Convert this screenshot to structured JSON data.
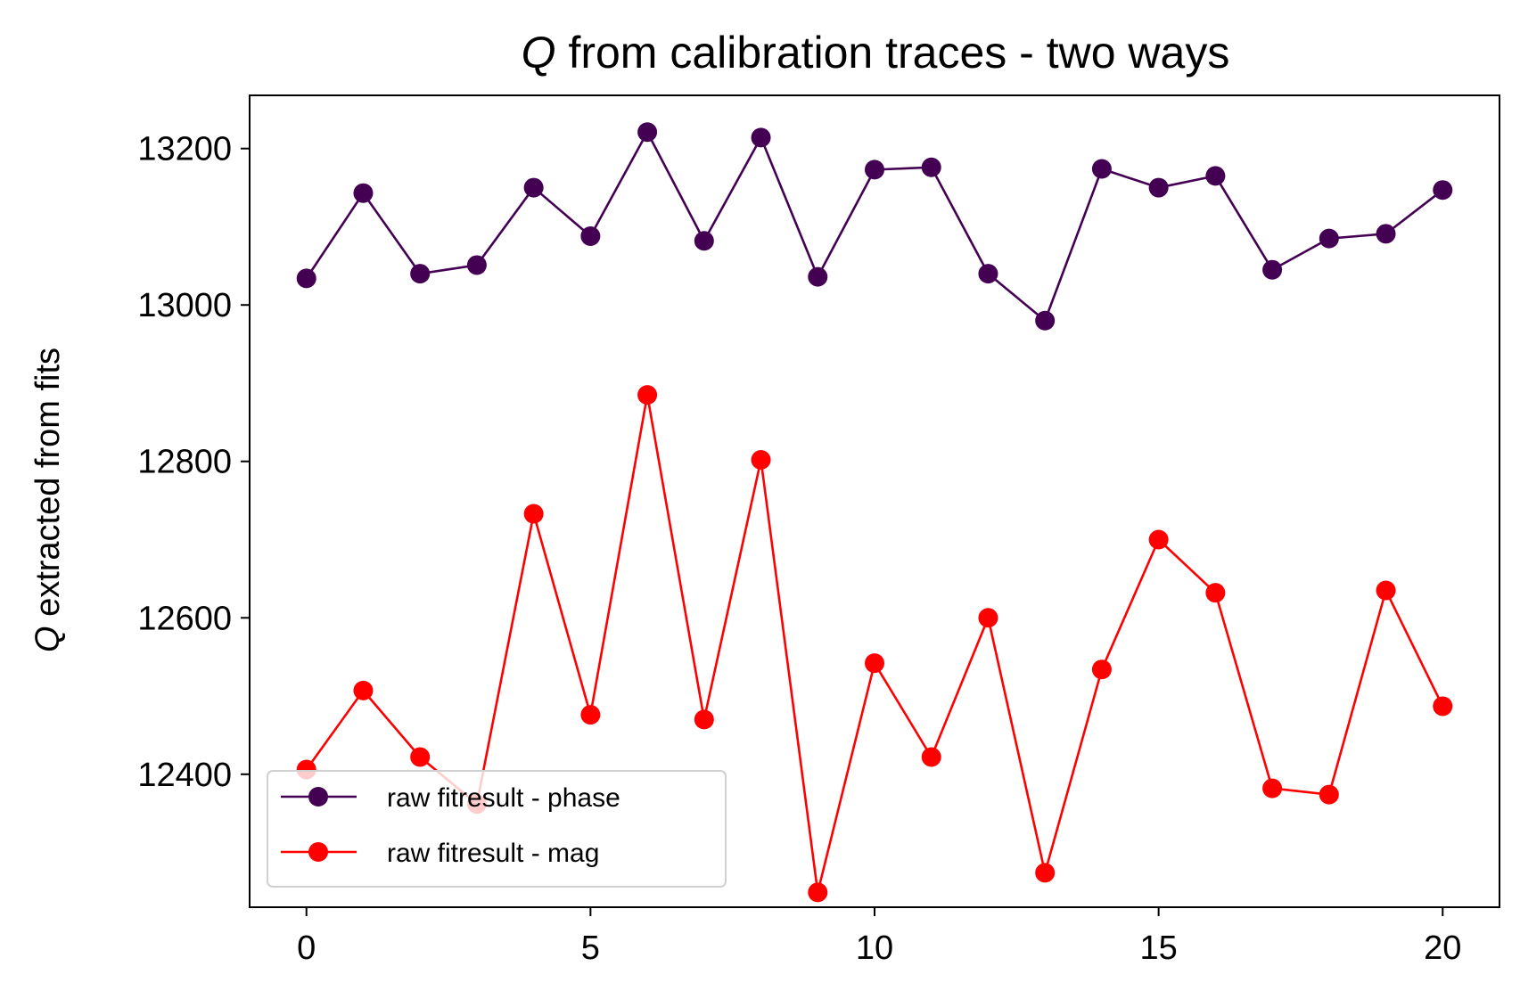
{
  "chart_data": {
    "type": "line",
    "title": "Q from calibration traces - two ways",
    "title_italic": "Q",
    "title_rest": " from calibration traces - two ways",
    "xlabel": "",
    "ylabel": "Q extracted from fits",
    "ylabel_italic": "Q",
    "ylabel_rest": " extracted from fits",
    "xlim": [
      -1,
      21
    ],
    "ylim": [
      12230,
      13268
    ],
    "xticks": [
      0,
      5,
      10,
      15,
      20
    ],
    "xtick_labels": [
      "0",
      "5",
      "10",
      "15",
      "20"
    ],
    "yticks": [
      12400,
      12600,
      12800,
      13000,
      13200
    ],
    "ytick_labels": [
      "12400",
      "12600",
      "12800",
      "13000",
      "13200"
    ],
    "grid": false,
    "legend_position": "lower-left",
    "x": [
      0,
      1,
      2,
      3,
      4,
      5,
      6,
      7,
      8,
      9,
      10,
      11,
      12,
      13,
      14,
      15,
      16,
      17,
      18,
      19,
      20
    ],
    "series": [
      {
        "name": "raw fitresult - phase",
        "color": "#440154",
        "marker": "circle",
        "values": [
          13034,
          13143,
          13040,
          13051,
          13150,
          13088,
          13221,
          13082,
          13214,
          13036,
          13173,
          13176,
          13040,
          12980,
          13174,
          13150,
          13165,
          13045,
          13085,
          13091,
          13147
        ]
      },
      {
        "name": "raw fitresult - mag",
        "color": "#ff0000",
        "marker": "circle",
        "values": [
          12406,
          12507,
          12422,
          12362,
          12733,
          12476,
          12885,
          12470,
          12802,
          12249,
          12542,
          12422,
          12600,
          12274,
          12534,
          12700,
          12632,
          12382,
          12374,
          12635,
          12487
        ]
      }
    ]
  }
}
